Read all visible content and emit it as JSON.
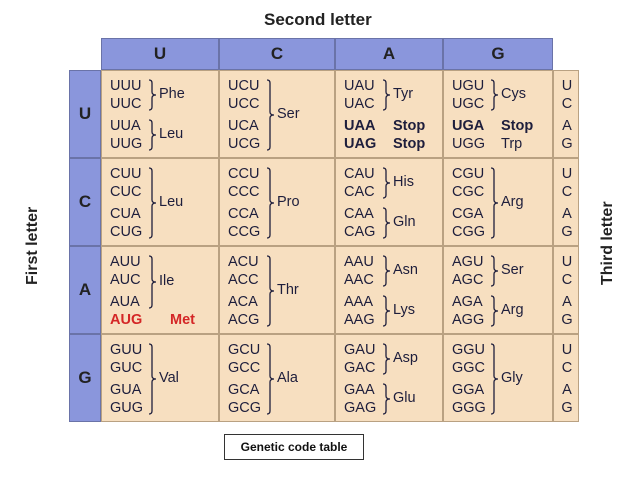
{
  "title": "Second letter",
  "left_label": "First letter",
  "right_label": "Third letter",
  "caption": "Genetic code table",
  "columns": [
    "U",
    "C",
    "A",
    "G"
  ],
  "rows": [
    {
      "letter": "U",
      "cells": [
        {
          "codons": [
            "UUU",
            "UUC",
            "UUA",
            "UUG"
          ],
          "groups": [
            {
              "label": "Phe",
              "start": 0,
              "end": 1
            },
            {
              "label": "Leu",
              "start": 2,
              "end": 3
            }
          ]
        },
        {
          "codons": [
            "UCU",
            "UCC",
            "UCA",
            "UCG"
          ],
          "groups": [
            {
              "label": "Ser",
              "start": 0,
              "end": 3
            }
          ]
        },
        {
          "codons": [
            "UAU",
            "UAC",
            "UAA",
            "UAG"
          ],
          "groups": [
            {
              "label": "Tyr",
              "start": 0,
              "end": 1
            }
          ],
          "singles": [
            {
              "index": 2,
              "label": "Stop",
              "bold": true
            },
            {
              "index": 3,
              "label": "Stop",
              "bold": true
            }
          ]
        },
        {
          "codons": [
            "UGU",
            "UGC",
            "UGA",
            "UGG"
          ],
          "groups": [
            {
              "label": "Cys",
              "start": 0,
              "end": 1
            }
          ],
          "singles": [
            {
              "index": 2,
              "label": "Stop",
              "bold": true
            },
            {
              "index": 3,
              "label": "Trp",
              "bold": false
            }
          ]
        }
      ],
      "third": [
        "U",
        "C",
        "A",
        "G"
      ]
    },
    {
      "letter": "C",
      "cells": [
        {
          "codons": [
            "CUU",
            "CUC",
            "CUA",
            "CUG"
          ],
          "groups": [
            {
              "label": "Leu",
              "start": 0,
              "end": 3
            }
          ]
        },
        {
          "codons": [
            "CCU",
            "CCC",
            "CCA",
            "CCG"
          ],
          "groups": [
            {
              "label": "Pro",
              "start": 0,
              "end": 3
            }
          ]
        },
        {
          "codons": [
            "CAU",
            "CAC",
            "CAA",
            "CAG"
          ],
          "groups": [
            {
              "label": "His",
              "start": 0,
              "end": 1
            },
            {
              "label": "Gln",
              "start": 2,
              "end": 3
            }
          ]
        },
        {
          "codons": [
            "CGU",
            "CGC",
            "CGA",
            "CGG"
          ],
          "groups": [
            {
              "label": "Arg",
              "start": 0,
              "end": 3
            }
          ]
        }
      ],
      "third": [
        "U",
        "C",
        "A",
        "G"
      ]
    },
    {
      "letter": "A",
      "cells": [
        {
          "codons": [
            "AUU",
            "AUC",
            "AUA",
            "AUG"
          ],
          "groups": [
            {
              "label": "Ile",
              "start": 0,
              "end": 2
            }
          ],
          "singles": [
            {
              "index": 3,
              "label": "Met",
              "red": true
            }
          ]
        },
        {
          "codons": [
            "ACU",
            "ACC",
            "ACA",
            "ACG"
          ],
          "groups": [
            {
              "label": "Thr",
              "start": 0,
              "end": 3
            }
          ]
        },
        {
          "codons": [
            "AAU",
            "AAC",
            "AAA",
            "AAG"
          ],
          "groups": [
            {
              "label": "Asn",
              "start": 0,
              "end": 1
            },
            {
              "label": "Lys",
              "start": 2,
              "end": 3
            }
          ]
        },
        {
          "codons": [
            "AGU",
            "AGC",
            "AGA",
            "AGG"
          ],
          "groups": [
            {
              "label": "Ser",
              "start": 0,
              "end": 1
            },
            {
              "label": "Arg",
              "start": 2,
              "end": 3
            }
          ]
        }
      ],
      "third": [
        "U",
        "C",
        "A",
        "G"
      ]
    },
    {
      "letter": "G",
      "cells": [
        {
          "codons": [
            "GUU",
            "GUC",
            "GUA",
            "GUG"
          ],
          "groups": [
            {
              "label": "Val",
              "start": 0,
              "end": 3
            }
          ]
        },
        {
          "codons": [
            "GCU",
            "GCC",
            "GCA",
            "GCG"
          ],
          "groups": [
            {
              "label": "Ala",
              "start": 0,
              "end": 3
            }
          ]
        },
        {
          "codons": [
            "GAU",
            "GAC",
            "GAA",
            "GAG"
          ],
          "groups": [
            {
              "label": "Asp",
              "start": 0,
              "end": 1
            },
            {
              "label": "Glu",
              "start": 2,
              "end": 3
            }
          ]
        },
        {
          "codons": [
            "GGU",
            "GGC",
            "GGA",
            "GGG"
          ],
          "groups": [
            {
              "label": "Gly",
              "start": 0,
              "end": 3
            }
          ]
        }
      ],
      "third": [
        "U",
        "C",
        "A",
        "G"
      ]
    }
  ],
  "colors": {
    "header": "#8a96dc",
    "cell": "#f7dfc0",
    "start_codon": "#d42626"
  }
}
